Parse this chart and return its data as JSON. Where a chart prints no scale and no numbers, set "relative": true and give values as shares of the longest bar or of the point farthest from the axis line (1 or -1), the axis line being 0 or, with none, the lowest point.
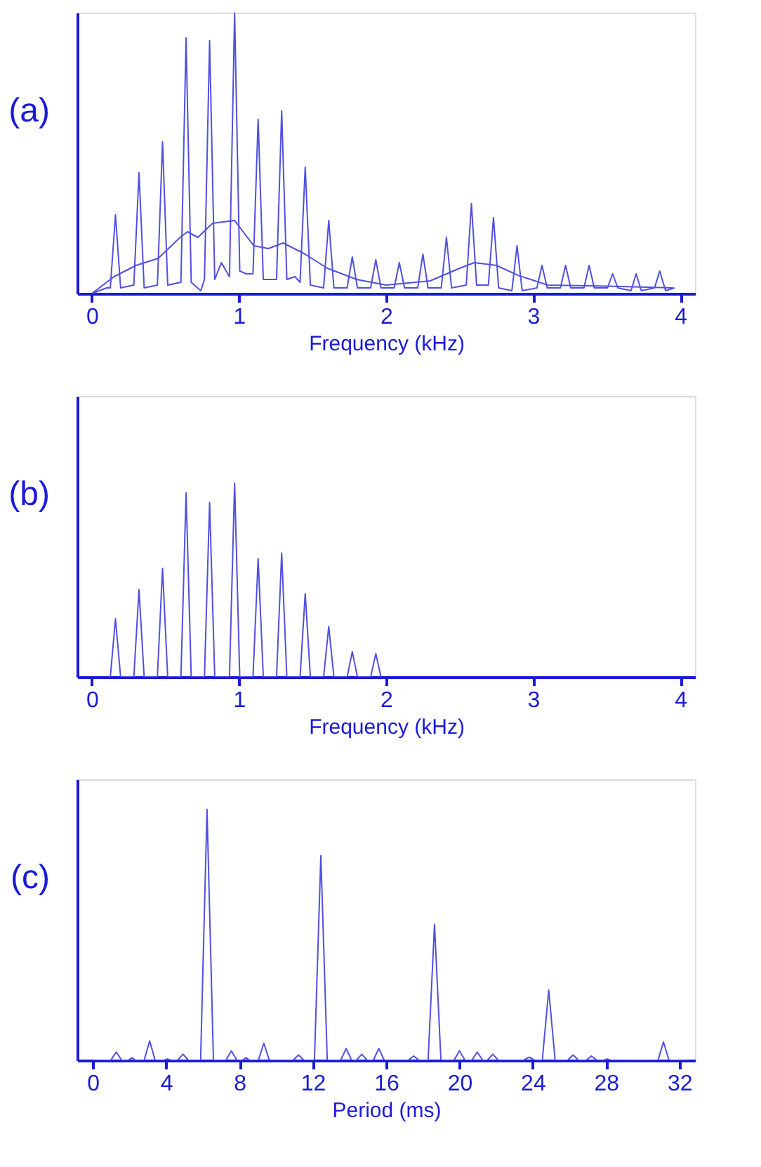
{
  "chart_data": [
    {
      "type": "line",
      "relative": true,
      "ylabel": "(a)",
      "xlabel": "Frequency (kHz)",
      "xlim": [
        -0.1,
        4.1
      ],
      "xticks": [
        0,
        1,
        2,
        3,
        4
      ],
      "tick_labels": "x",
      "series": [
        {
          "color": "#5050e0",
          "x": [
            0,
            0.1,
            0.125,
            0.16,
            0.195,
            0.285,
            0.32,
            0.355,
            0.445,
            0.48,
            0.515,
            0.605,
            0.64,
            0.675,
            0.74,
            0.765,
            0.8,
            0.835,
            0.88,
            0.935,
            0.97,
            1.005,
            1.05,
            1.095,
            1.13,
            1.165,
            1.21,
            1.255,
            1.29,
            1.325,
            1.38,
            1.415,
            1.45,
            1.485,
            1.575,
            1.61,
            1.645,
            1.735,
            1.77,
            1.805,
            1.895,
            1.93,
            1.965,
            2.055,
            2.09,
            2.125,
            2.215,
            2.25,
            2.285,
            2.375,
            2.41,
            2.445,
            2.545,
            2.58,
            2.615,
            2.695,
            2.73,
            2.765,
            2.855,
            2.89,
            2.925,
            3.025,
            3.06,
            3.095,
            3.185,
            3.22,
            3.255,
            3.345,
            3.38,
            3.415,
            3.505,
            3.54,
            3.575,
            3.665,
            3.7,
            3.735,
            3.825,
            3.86,
            3.9,
            3.96
          ],
          "values": [
            0,
            0.02,
            0.02,
            0.28,
            0.02,
            0.03,
            0.43,
            0.02,
            0.03,
            0.54,
            0.03,
            0.04,
            0.91,
            0.04,
            0.01,
            0.05,
            0.9,
            0.05,
            0.11,
            0.06,
            1.0,
            0.08,
            0.07,
            0.07,
            0.62,
            0.05,
            0.05,
            0.05,
            0.65,
            0.05,
            0.06,
            0.04,
            0.45,
            0.03,
            0.02,
            0.26,
            0.02,
            0.02,
            0.13,
            0.02,
            0.02,
            0.12,
            0.02,
            0.02,
            0.11,
            0.02,
            0.02,
            0.14,
            0.02,
            0.02,
            0.2,
            0.02,
            0.03,
            0.32,
            0.03,
            0.03,
            0.27,
            0.02,
            0.01,
            0.17,
            0.01,
            0.02,
            0.1,
            0.02,
            0.02,
            0.1,
            0.02,
            0.02,
            0.1,
            0.02,
            0.02,
            0.07,
            0.02,
            0.01,
            0.07,
            0.01,
            0.02,
            0.08,
            0.01,
            0.02
          ]
        },
        {
          "color": "#5050e0",
          "x": [
            0,
            0.15,
            0.3,
            0.45,
            0.6,
            0.65,
            0.72,
            0.82,
            0.97,
            1.1,
            1.2,
            1.3,
            1.45,
            1.6,
            1.8,
            2.0,
            2.3,
            2.5,
            2.6,
            2.75,
            2.9,
            3.1,
            3.5,
            3.95
          ],
          "values": [
            0,
            0.06,
            0.1,
            0.125,
            0.2,
            0.22,
            0.2,
            0.25,
            0.26,
            0.17,
            0.16,
            0.18,
            0.14,
            0.09,
            0.05,
            0.03,
            0.045,
            0.09,
            0.11,
            0.1,
            0.064,
            0.03,
            0.026,
            0.02
          ]
        }
      ]
    },
    {
      "type": "line",
      "relative": true,
      "ylabel": "(b)",
      "xlabel": "Frequency (kHz)",
      "xlim": [
        -0.1,
        4.1
      ],
      "xticks": [
        0,
        1,
        2,
        3,
        4
      ],
      "tick_labels": "x",
      "series": [
        {
          "color": "#5050e0",
          "x": [
            0.125,
            0.16,
            0.195,
            0.285,
            0.32,
            0.355,
            0.445,
            0.48,
            0.515,
            0.605,
            0.64,
            0.675,
            0.765,
            0.8,
            0.835,
            0.935,
            0.97,
            1.005,
            1.095,
            1.13,
            1.165,
            1.255,
            1.29,
            1.325,
            1.415,
            1.45,
            1.485,
            1.575,
            1.61,
            1.645,
            1.735,
            1.77,
            1.805,
            1.895,
            1.93,
            1.965
          ],
          "values": [
            0,
            0.3,
            0,
            0,
            0.45,
            0,
            0,
            0.56,
            0,
            0,
            0.95,
            0,
            0,
            0.9,
            0,
            0,
            1.0,
            0,
            0,
            0.61,
            0,
            0,
            0.64,
            0,
            0,
            0.43,
            0,
            0,
            0.26,
            0,
            0,
            0.13,
            0,
            0,
            0.12,
            0
          ]
        }
      ]
    },
    {
      "type": "line",
      "relative": true,
      "ylabel": "(c)",
      "xlabel": "Period (ms)",
      "xlim": [
        -0.85,
        32.85
      ],
      "xticks": [
        0,
        4,
        8,
        12,
        16,
        20,
        24,
        28,
        32
      ],
      "tick_labels": "x",
      "series": [
        {
          "color": "#5050e0",
          "x": [
            0,
            0.98,
            1.28,
            1.58,
            1.93,
            2.13,
            2.33,
            2.8,
            3.1,
            3.4,
            3.87,
            4.07,
            4.27,
            4.62,
            4.92,
            5.22,
            5.88,
            6.23,
            6.58,
            7.26,
            7.56,
            7.86,
            8.16,
            8.36,
            8.56,
            9.03,
            9.33,
            9.63,
            10.92,
            11.22,
            11.52,
            12.09,
            12.44,
            12.79,
            13.52,
            13.82,
            14.12,
            14.37,
            14.67,
            14.97,
            15.3,
            15.6,
            15.9,
            17.2,
            17.5,
            17.8,
            18.29,
            18.64,
            18.99,
            19.7,
            20.0,
            20.3,
            20.67,
            20.97,
            21.27,
            21.52,
            21.82,
            22.12,
            23.5,
            23.8,
            24.1,
            24.52,
            24.87,
            25.22,
            25.9,
            26.2,
            26.5,
            26.9,
            27.2,
            27.5,
            27.85,
            28.05,
            28.25,
            30.83,
            31.13,
            31.43,
            32.5
          ],
          "values": [
            0,
            0,
            0.033,
            0,
            0,
            0.01,
            0,
            0,
            0.077,
            0,
            0,
            0.005,
            0,
            0,
            0.024,
            0,
            0,
            1.0,
            0,
            0,
            0.038,
            0,
            0,
            0.01,
            0,
            0,
            0.068,
            0,
            0,
            0.021,
            0,
            0,
            0.816,
            0,
            0,
            0.047,
            0,
            0,
            0.024,
            0,
            0,
            0.047,
            0,
            0,
            0.017,
            0,
            0,
            0.542,
            0,
            0,
            0.038,
            0,
            0,
            0.033,
            0,
            0,
            0.024,
            0,
            0,
            0.012,
            0,
            0,
            0.28,
            0,
            0,
            0.021,
            0,
            0,
            0.017,
            0,
            0,
            0.005,
            0,
            0,
            0.073,
            0,
            0
          ]
        }
      ]
    }
  ]
}
